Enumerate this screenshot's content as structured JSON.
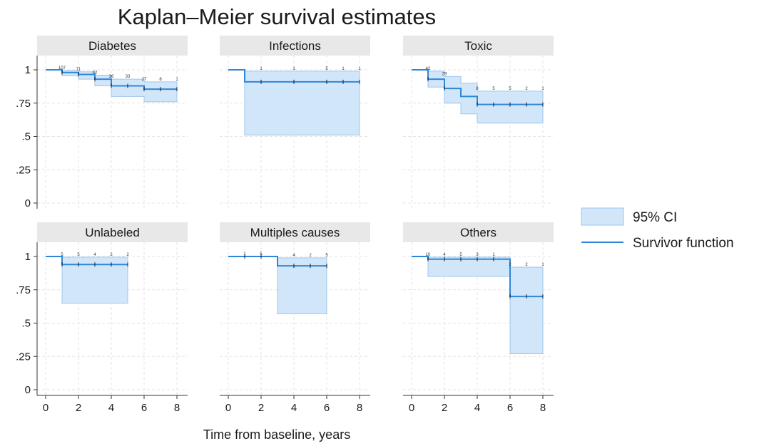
{
  "chart_data": {
    "type": "line",
    "title": "Kaplan–Meier survival estimates",
    "xlabel": "Time from baseline, years",
    "ylabel": "",
    "xlim": [
      0,
      8
    ],
    "ylim": [
      0,
      1
    ],
    "xticks": [
      "0",
      "2",
      "4",
      "6",
      "8"
    ],
    "yticks": [
      "0",
      ".25",
      ".5",
      ".75",
      "1"
    ],
    "legend": {
      "placement": "right",
      "entries": [
        "95% CI",
        "Survivor function"
      ]
    },
    "colors": {
      "ci_fill": "#d2e6fa",
      "ci_edge": "#9cc6ee",
      "line": "#2f86d8"
    },
    "panels": [
      {
        "name": "Diabetes",
        "steps": [
          [
            0,
            1.0
          ],
          [
            1,
            0.98
          ],
          [
            2,
            0.965
          ],
          [
            3,
            0.93
          ],
          [
            4,
            0.88
          ],
          [
            6,
            0.855
          ],
          [
            8,
            0.855
          ]
        ],
        "ci_upper": [
          [
            0,
            1.0
          ],
          [
            1,
            0.995
          ],
          [
            2,
            0.985
          ],
          [
            3,
            0.96
          ],
          [
            4,
            0.93
          ],
          [
            6,
            0.91
          ],
          [
            8,
            0.91
          ]
        ],
        "ci_lower": [
          [
            0,
            1.0
          ],
          [
            1,
            0.955
          ],
          [
            2,
            0.93
          ],
          [
            3,
            0.88
          ],
          [
            4,
            0.8
          ],
          [
            6,
            0.76
          ],
          [
            8,
            0.76
          ]
        ],
        "risk_counts": [
          {
            "x": 1,
            "label": "107"
          },
          {
            "x": 2,
            "label": "71"
          },
          {
            "x": 3,
            "label": "42"
          },
          {
            "x": 4,
            "label": "36"
          },
          {
            "x": 5,
            "label": "33"
          },
          {
            "x": 6,
            "label": "27"
          },
          {
            "x": 7,
            "label": "8"
          },
          {
            "x": 8,
            "label": "1"
          }
        ]
      },
      {
        "name": "Infections",
        "steps": [
          [
            0,
            1.0
          ],
          [
            1,
            0.91
          ],
          [
            8,
            0.91
          ]
        ],
        "ci_upper": [
          [
            0,
            1.0
          ],
          [
            1,
            0.99
          ],
          [
            8,
            0.99
          ]
        ],
        "ci_lower": [
          [
            0,
            1.0
          ],
          [
            1,
            0.51
          ],
          [
            8,
            0.51
          ]
        ],
        "risk_counts": [
          {
            "x": 2,
            "label": "1"
          },
          {
            "x": 4,
            "label": "1"
          },
          {
            "x": 6,
            "label": "5"
          },
          {
            "x": 7,
            "label": "1"
          },
          {
            "x": 8,
            "label": "1"
          }
        ]
      },
      {
        "name": "Toxic",
        "steps": [
          [
            0,
            1.0
          ],
          [
            1,
            0.93
          ],
          [
            2,
            0.86
          ],
          [
            3,
            0.8
          ],
          [
            4,
            0.74
          ],
          [
            8,
            0.74
          ]
        ],
        "ci_upper": [
          [
            0,
            1.0
          ],
          [
            1,
            0.99
          ],
          [
            2,
            0.95
          ],
          [
            3,
            0.9
          ],
          [
            4,
            0.84
          ],
          [
            8,
            0.84
          ]
        ],
        "ci_lower": [
          [
            0,
            1.0
          ],
          [
            1,
            0.87
          ],
          [
            2,
            0.75
          ],
          [
            3,
            0.67
          ],
          [
            4,
            0.6
          ],
          [
            8,
            0.6
          ]
        ],
        "risk_counts": [
          {
            "x": 1,
            "label": "42"
          },
          {
            "x": 2,
            "label": "29"
          },
          {
            "x": 4,
            "label": "8"
          },
          {
            "x": 5,
            "label": "5"
          },
          {
            "x": 6,
            "label": "5"
          },
          {
            "x": 7,
            "label": "2"
          },
          {
            "x": 8,
            "label": "1"
          }
        ]
      },
      {
        "name": "Unlabeled",
        "steps": [
          [
            0,
            1.0
          ],
          [
            1,
            0.94
          ],
          [
            5,
            0.94
          ]
        ],
        "ci_upper": [
          [
            0,
            1.0
          ],
          [
            1,
            0.995
          ],
          [
            5,
            0.995
          ]
        ],
        "ci_lower": [
          [
            0,
            1.0
          ],
          [
            1,
            0.65
          ],
          [
            5,
            0.65
          ]
        ],
        "risk_counts": [
          {
            "x": 1,
            "label": "5"
          },
          {
            "x": 2,
            "label": "5"
          },
          {
            "x": 3,
            "label": "4"
          },
          {
            "x": 4,
            "label": "2"
          },
          {
            "x": 5,
            "label": "2"
          }
        ]
      },
      {
        "name": "Multiples causes",
        "steps": [
          [
            0,
            1.0
          ],
          [
            3,
            0.93
          ],
          [
            6,
            0.93
          ]
        ],
        "ci_upper": [
          [
            0,
            1.0
          ],
          [
            3,
            0.99
          ],
          [
            6,
            0.99
          ]
        ],
        "ci_lower": [
          [
            0,
            1.0
          ],
          [
            3,
            0.57
          ],
          [
            6,
            0.57
          ]
        ],
        "risk_counts": [
          {
            "x": 1,
            "label": "1"
          },
          {
            "x": 2,
            "label": "5"
          },
          {
            "x": 4,
            "label": "4"
          },
          {
            "x": 5,
            "label": "2"
          },
          {
            "x": 6,
            "label": "5"
          }
        ]
      },
      {
        "name": "Others",
        "steps": [
          [
            0,
            1.0
          ],
          [
            1,
            0.98
          ],
          [
            6,
            0.7
          ],
          [
            8,
            0.7
          ]
        ],
        "ci_upper": [
          [
            0,
            1.0
          ],
          [
            1,
            0.995
          ],
          [
            6,
            0.92
          ],
          [
            8,
            0.92
          ]
        ],
        "ci_lower": [
          [
            0,
            1.0
          ],
          [
            1,
            0.85
          ],
          [
            6,
            0.27
          ],
          [
            8,
            0.27
          ]
        ],
        "risk_counts": [
          {
            "x": 1,
            "label": "10"
          },
          {
            "x": 2,
            "label": "4"
          },
          {
            "x": 3,
            "label": "5"
          },
          {
            "x": 4,
            "label": "3"
          },
          {
            "x": 5,
            "label": "1"
          },
          {
            "x": 6,
            "label": "2"
          },
          {
            "x": 7,
            "label": "2"
          },
          {
            "x": 8,
            "label": "1"
          }
        ]
      }
    ]
  }
}
